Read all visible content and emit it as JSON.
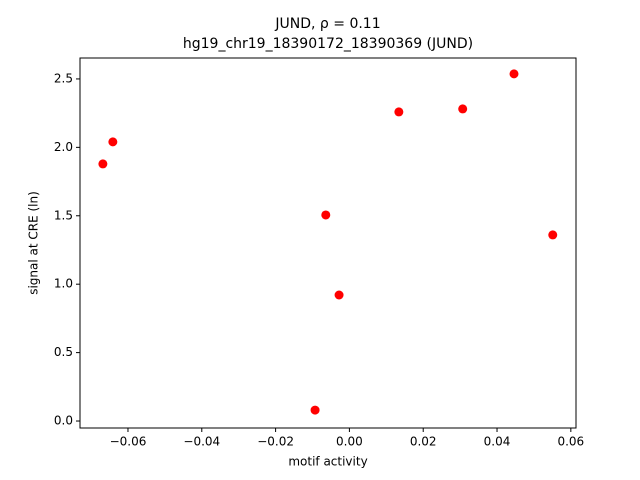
{
  "chart_data": {
    "type": "scatter",
    "title": "JUND, ρ = 0.11",
    "subtitle": "hg19_chr19_18390172_18390369 (JUND)",
    "x_label": "motif activity",
    "y_label": "signal at CRE (ln)",
    "x": [
      -0.0668,
      -0.0641,
      -0.0064,
      -0.0028,
      -0.0093,
      0.0134,
      0.0307,
      0.0446,
      0.0551
    ],
    "values": [
      1.879,
      2.04,
      1.506,
      0.921,
      0.08,
      2.259,
      2.281,
      2.537,
      1.36
    ],
    "color": "#ff0000",
    "xlim": [
      -0.073,
      0.0614
    ],
    "ylim": [
      -0.051,
      2.653
    ],
    "xticks": [
      {
        "value": -0.06,
        "label": "−0.06"
      },
      {
        "value": -0.04,
        "label": "−0.04"
      },
      {
        "value": -0.02,
        "label": "−0.02"
      },
      {
        "value": 0,
        "label": "0.00"
      },
      {
        "value": 0.02,
        "label": "0.02"
      },
      {
        "value": 0.04,
        "label": "0.04"
      },
      {
        "value": 0.06,
        "label": "0.06"
      }
    ],
    "yticks": [
      {
        "value": 0,
        "label": "0.0"
      },
      0.5,
      {
        "value": 1,
        "label": "1.0"
      },
      1.5,
      {
        "value": 2,
        "label": "2.0"
      },
      2.5
    ],
    "grid": false
  }
}
